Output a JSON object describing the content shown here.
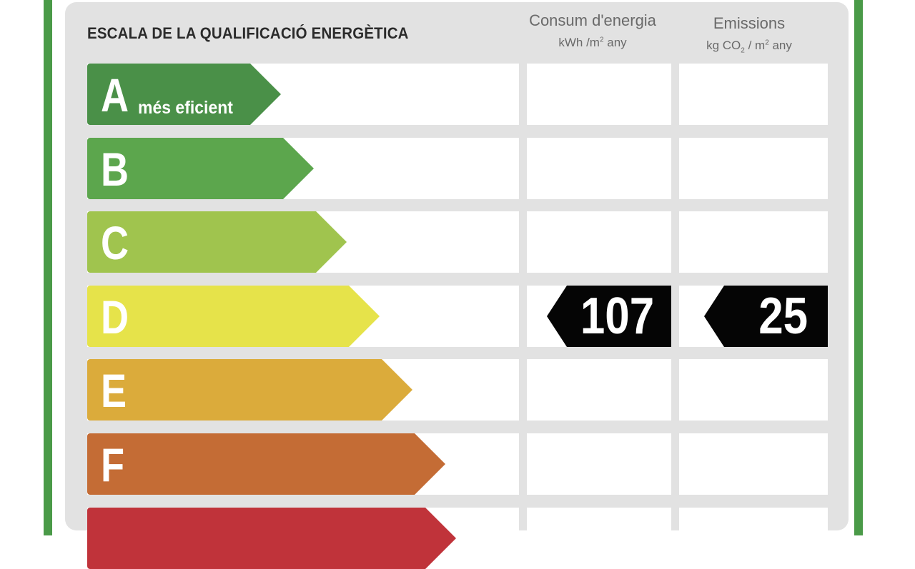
{
  "title": "ESCALA DE LA QUALIFICACIÓ ENERGÈTICA",
  "columns": {
    "consumption": {
      "label": "Consum d'energia",
      "unit_prefix": "kWh /m",
      "unit_sup": "2",
      "unit_suffix": " any"
    },
    "emissions": {
      "label": "Emissions",
      "unit_prefix": "kg CO",
      "unit_sub": "2",
      "unit_mid": " / m",
      "unit_sup": "2",
      "unit_suffix": " any"
    }
  },
  "ratings": [
    {
      "letter": "A",
      "tagline": "més eficient",
      "color": "#4a9048"
    },
    {
      "letter": "B",
      "tagline": "",
      "color": "#5ca64d"
    },
    {
      "letter": "C",
      "tagline": "",
      "color": "#a0c44e"
    },
    {
      "letter": "D",
      "tagline": "",
      "color": "#e6e34a"
    },
    {
      "letter": "E",
      "tagline": "",
      "color": "#dbab3b"
    },
    {
      "letter": "F",
      "tagline": "",
      "color": "#c46c35"
    },
    {
      "letter": "",
      "tagline": "",
      "color": "#c0333a"
    }
  ],
  "current_rating": {
    "letter": "D",
    "consumption_value": "107",
    "emissions_value": "25"
  },
  "colors": {
    "border_green": "#4a9a48",
    "panel_gray": "#e2e2e2",
    "value_tag": "#050505"
  }
}
